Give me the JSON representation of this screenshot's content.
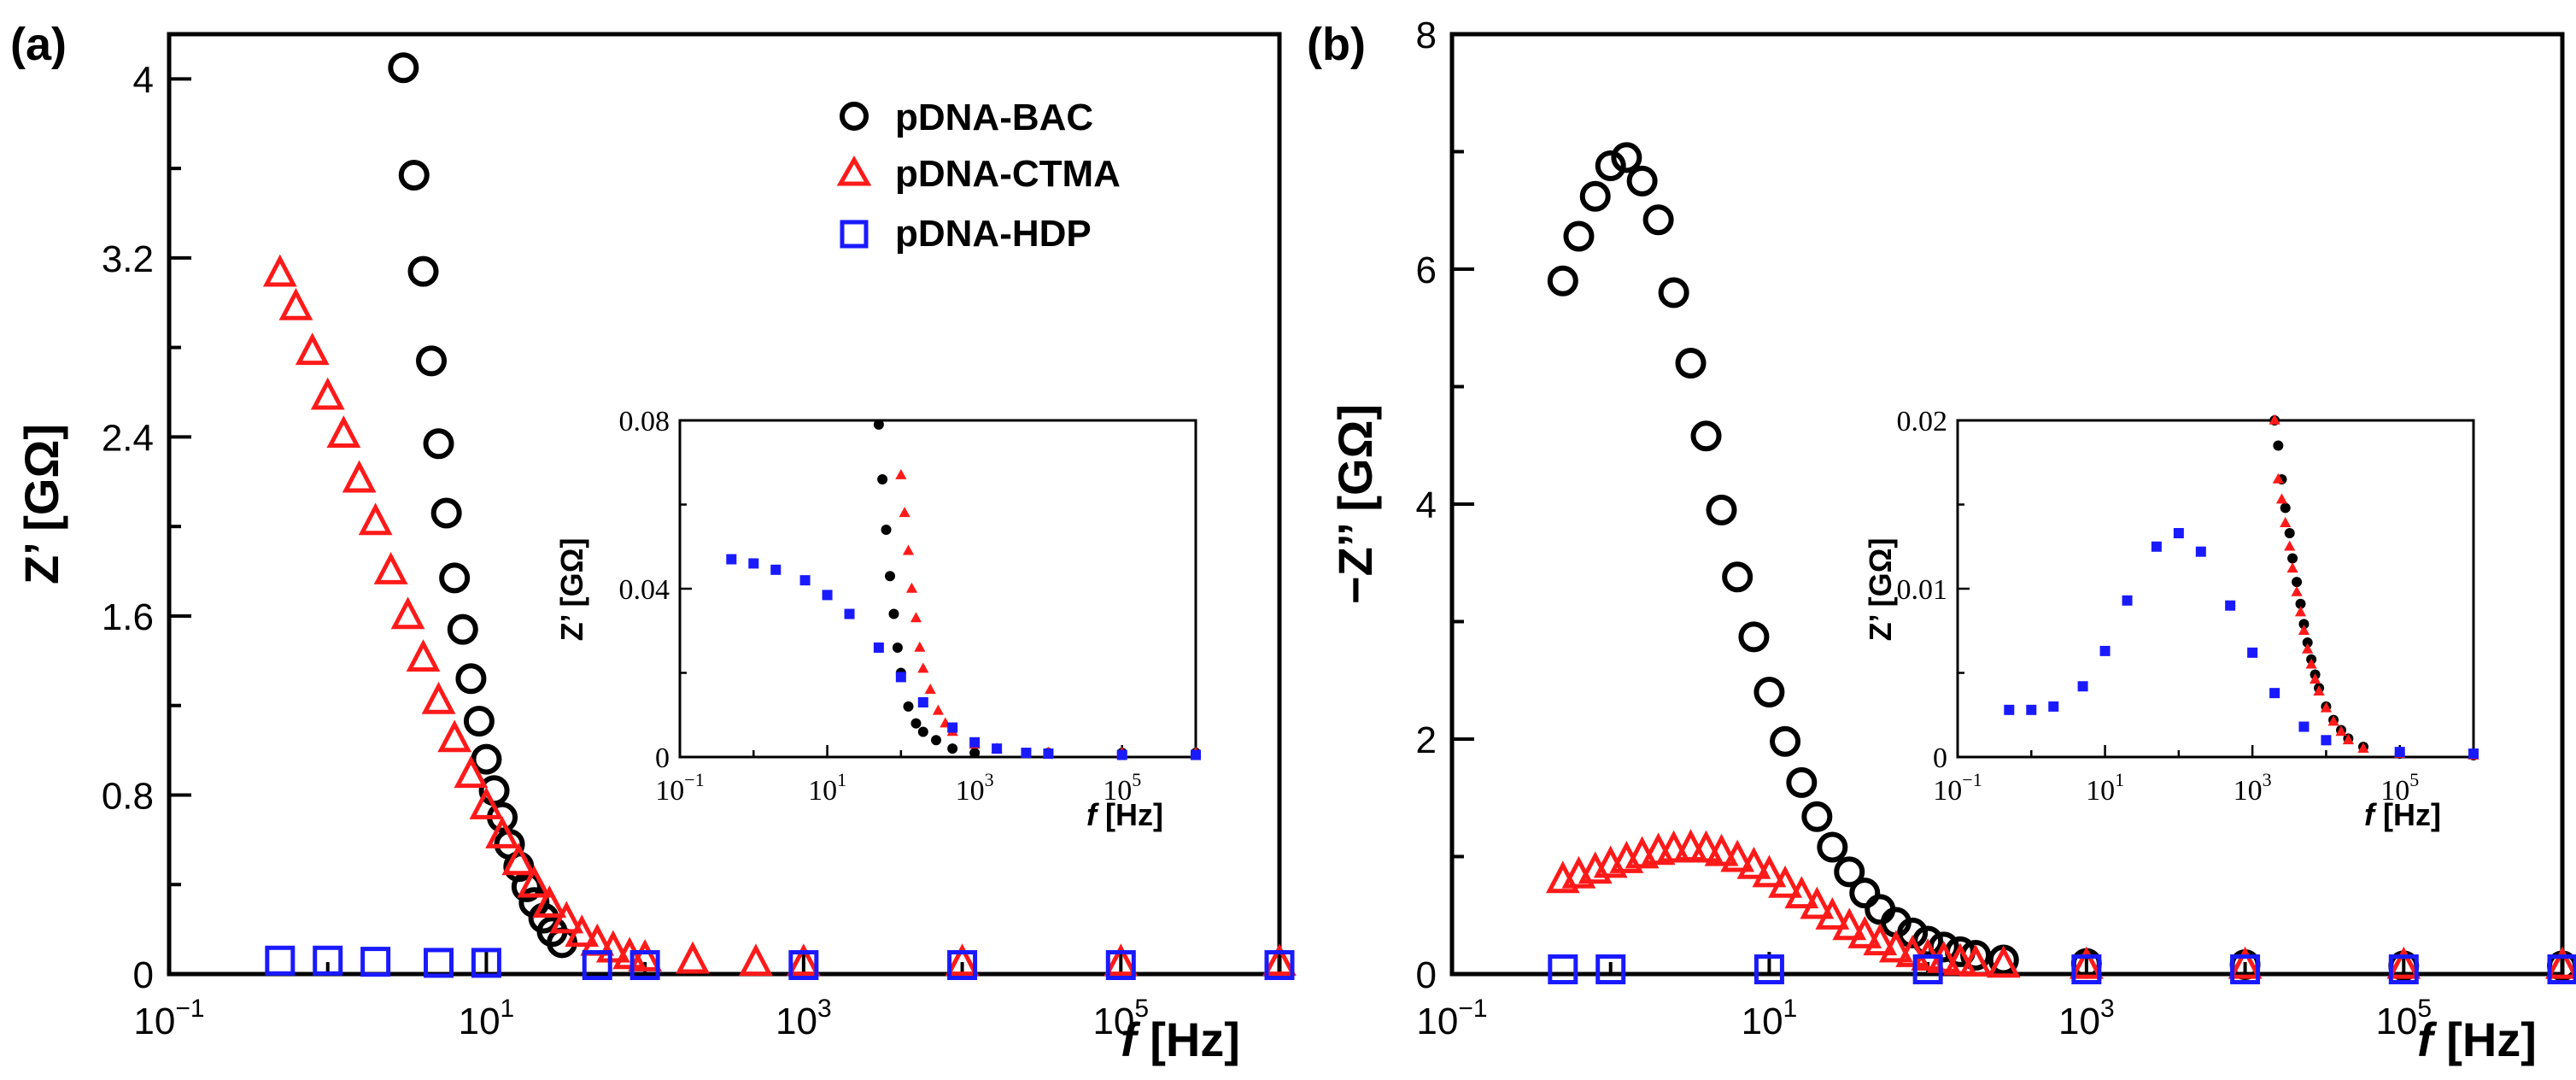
{
  "colors": {
    "bac": "#000000",
    "ctma": "#ff1a1a",
    "hdp": "#1a1aff"
  },
  "legend": {
    "items": [
      {
        "label": "pDNA-BAC",
        "marker": "circle",
        "color": "#000000"
      },
      {
        "label": "pDNA-CTMA",
        "marker": "triangle",
        "color": "#ff1a1a"
      },
      {
        "label": "pDNA-HDP",
        "marker": "square",
        "color": "#1a1aff"
      }
    ]
  },
  "chart_data": [
    {
      "panel": "(a)",
      "type": "scatter",
      "xscale": "log",
      "xlim": [
        0.1,
        1000000
      ],
      "ylim": [
        0,
        4.2
      ],
      "xlabel_var": "f",
      "xlabel_unit": " [Hz]",
      "ylabel": "Z’ [GΩ]",
      "xticks": [
        0.1,
        10,
        1000,
        100000
      ],
      "xtick_labels": [
        [
          "10",
          "−1"
        ],
        [
          "10",
          "1"
        ],
        [
          "10",
          "3"
        ],
        [
          "10",
          "5"
        ]
      ],
      "yticks": [
        0,
        0.8,
        1.6,
        2.4,
        3.2,
        4
      ],
      "ytick_labels": [
        "0",
        "0.8",
        "1.6",
        "2.4",
        "3.2",
        "4"
      ],
      "series": [
        {
          "name": "pDNA-BAC",
          "x": [
            3,
            3.5,
            4,
            4.5,
            5,
            5.6,
            6.3,
            7.1,
            8,
            9,
            10,
            11.2,
            12.6,
            14,
            16,
            18,
            20,
            23,
            26,
            30
          ],
          "y": [
            4.05,
            3.57,
            3.14,
            2.74,
            2.37,
            2.06,
            1.77,
            1.54,
            1.32,
            1.13,
            0.96,
            0.82,
            0.7,
            0.58,
            0.48,
            0.39,
            0.32,
            0.25,
            0.19,
            0.14
          ]
        },
        {
          "name": "pDNA-CTMA",
          "x": [
            0.5,
            0.63,
            0.8,
            1,
            1.26,
            1.58,
            2,
            2.5,
            3.2,
            4,
            5,
            6.3,
            8,
            10,
            12.6,
            16,
            20,
            25,
            32,
            40,
            50,
            63,
            80,
            100,
            200,
            500,
            1000,
            10000,
            100000,
            1000000
          ],
          "y": [
            3.13,
            2.98,
            2.78,
            2.58,
            2.41,
            2.21,
            2.02,
            1.8,
            1.6,
            1.41,
            1.22,
            1.05,
            0.89,
            0.75,
            0.62,
            0.5,
            0.4,
            0.31,
            0.24,
            0.18,
            0.14,
            0.11,
            0.08,
            0.07,
            0.06,
            0.05,
            0.05,
            0.05,
            0.05,
            0.05
          ]
        },
        {
          "name": "pDNA-HDP",
          "x": [
            0.5,
            1,
            2,
            5,
            10,
            50,
            100,
            1000,
            10000,
            100000,
            1000000
          ],
          "y": [
            0.06,
            0.06,
            0.055,
            0.05,
            0.05,
            0.04,
            0.04,
            0.04,
            0.04,
            0.04,
            0.04
          ]
        }
      ],
      "inset": {
        "xscale": "log",
        "xlim": [
          0.1,
          1000000
        ],
        "ylim": [
          0,
          0.08
        ],
        "xlabel_var": "f",
        "xlabel_unit": " [Hz]",
        "ylabel": "Z’ [GΩ]",
        "xticks": [
          0.1,
          10,
          1000,
          100000
        ],
        "xtick_labels": [
          [
            "10",
            "−1"
          ],
          [
            "10",
            "1"
          ],
          [
            "10",
            "3"
          ],
          [
            "10",
            "5"
          ]
        ],
        "yticks": [
          0,
          0.04,
          0.08
        ],
        "ytick_labels": [
          "0",
          "0.04",
          "0.08"
        ],
        "series": [
          {
            "name": "pDNA-BAC",
            "x": [
              50,
              56,
              63,
              71,
              80,
              90,
              100,
              126,
              160,
              200,
              300,
              500,
              1000,
              10000,
              100000,
              1000000
            ],
            "y": [
              0.079,
              0.066,
              0.054,
              0.043,
              0.034,
              0.026,
              0.02,
              0.012,
              0.008,
              0.006,
              0.004,
              0.002,
              0.001,
              0.001,
              0.001,
              0.001
            ]
          },
          {
            "name": "pDNA-CTMA",
            "x": [
              100,
              112,
              126,
              140,
              160,
              180,
              200,
              250,
              320,
              400,
              500,
              1000,
              2000,
              10000,
              100000,
              1000000
            ],
            "y": [
              0.067,
              0.058,
              0.049,
              0.04,
              0.033,
              0.026,
              0.021,
              0.016,
              0.011,
              0.008,
              0.006,
              0.003,
              0.002,
              0.001,
              0.001,
              0.001
            ]
          },
          {
            "name": "pDNA-HDP",
            "x": [
              0.5,
              1,
              2,
              5,
              10,
              20,
              50,
              100,
              200,
              500,
              1000,
              2000,
              5000,
              10000,
              100000,
              1000000
            ],
            "y": [
              0.047,
              0.046,
              0.0445,
              0.042,
              0.0385,
              0.034,
              0.026,
              0.019,
              0.013,
              0.007,
              0.0035,
              0.002,
              0.001,
              0.0008,
              0.0005,
              0.0005
            ]
          }
        ]
      }
    },
    {
      "panel": "(b)",
      "type": "scatter",
      "xscale": "log",
      "xlim": [
        0.1,
        1000000
      ],
      "ylim": [
        0,
        8
      ],
      "xlabel_var": "f",
      "xlabel_unit": " [Hz]",
      "ylabel": "−Z’’ [GΩ]",
      "xticks": [
        0.1,
        10,
        1000,
        100000
      ],
      "xtick_labels": [
        [
          "10",
          "−1"
        ],
        [
          "10",
          "1"
        ],
        [
          "10",
          "3"
        ],
        [
          "10",
          "5"
        ]
      ],
      "yticks": [
        0,
        2,
        4,
        6,
        8
      ],
      "ytick_labels": [
        "0",
        "2",
        "4",
        "6",
        "8"
      ],
      "series": [
        {
          "name": "pDNA-BAC",
          "x": [
            0.5,
            0.63,
            0.8,
            1,
            1.26,
            1.58,
            2,
            2.5,
            3.2,
            4,
            5,
            6.3,
            8,
            10,
            12.6,
            16,
            20,
            25,
            32,
            40,
            50,
            63,
            80,
            100,
            126,
            160,
            200,
            300,
            1000,
            10000,
            100000,
            1000000
          ],
          "y": [
            5.9,
            6.28,
            6.62,
            6.88,
            6.95,
            6.75,
            6.42,
            5.8,
            5.2,
            4.58,
            3.95,
            3.38,
            2.87,
            2.4,
            1.98,
            1.63,
            1.34,
            1.08,
            0.87,
            0.69,
            0.55,
            0.44,
            0.35,
            0.28,
            0.23,
            0.19,
            0.16,
            0.12,
            0.09,
            0.08,
            0.07,
            0.07
          ]
        },
        {
          "name": "pDNA-CTMA",
          "x": [
            0.5,
            0.63,
            0.8,
            1,
            1.26,
            1.58,
            2,
            2.5,
            3.2,
            4,
            5,
            6.3,
            8,
            10,
            12.6,
            16,
            20,
            25,
            32,
            40,
            50,
            63,
            80,
            100,
            126,
            160,
            200,
            300,
            1000,
            10000,
            100000,
            1000000
          ],
          "y": [
            0.8,
            0.84,
            0.88,
            0.93,
            0.97,
            1.01,
            1.04,
            1.06,
            1.07,
            1.06,
            1.03,
            0.98,
            0.92,
            0.85,
            0.76,
            0.67,
            0.58,
            0.49,
            0.4,
            0.33,
            0.27,
            0.21,
            0.17,
            0.14,
            0.12,
            0.1,
            0.09,
            0.08,
            0.07,
            0.07,
            0.07,
            0.07
          ]
        },
        {
          "name": "pDNA-HDP",
          "x": [
            0.5,
            1,
            10,
            100,
            1000,
            10000,
            100000,
            1000000
          ],
          "y": [
            0.04,
            0.04,
            0.04,
            0.04,
            0.04,
            0.04,
            0.04,
            0.04
          ]
        }
      ],
      "inset": {
        "xscale": "log",
        "xlim": [
          0.1,
          1000000
        ],
        "ylim": [
          0,
          0.02
        ],
        "xlabel_var": "f",
        "xlabel_unit": " [Hz]",
        "ylabel": "Z’ [GΩ]",
        "xticks": [
          0.1,
          10,
          1000,
          100000
        ],
        "xtick_labels": [
          [
            "10",
            "−1"
          ],
          [
            "10",
            "1"
          ],
          [
            "10",
            "3"
          ],
          [
            "10",
            "5"
          ]
        ],
        "yticks": [
          0,
          0.01,
          0.02
        ],
        "ytick_labels": [
          "0",
          "0.01",
          "0.02"
        ],
        "series": [
          {
            "name": "pDNA-BAC",
            "x": [
              2000,
              2240,
              2500,
              2800,
              3200,
              3500,
              4000,
              4500,
              5000,
              5600,
              6300,
              7100,
              8000,
              10000,
              12600,
              16000,
              20000,
              32000,
              100000,
              1000000
            ],
            "y": [
              0.02,
              0.0185,
              0.0165,
              0.0148,
              0.0133,
              0.0118,
              0.0104,
              0.0091,
              0.0079,
              0.0068,
              0.0058,
              0.0049,
              0.0041,
              0.003,
              0.0022,
              0.0016,
              0.0011,
              0.0006,
              0.0002,
              0.0001
            ]
          },
          {
            "name": "pDNA-CTMA",
            "x": [
              2000,
              2240,
              2500,
              2800,
              3200,
              3500,
              4000,
              4500,
              5000,
              5600,
              6300,
              7100,
              8000,
              10000,
              12600,
              16000,
              20000,
              32000,
              100000,
              1000000
            ],
            "y": [
              0.02,
              0.0165,
              0.0153,
              0.0139,
              0.0125,
              0.0112,
              0.0098,
              0.0086,
              0.0075,
              0.0064,
              0.0055,
              0.0046,
              0.0039,
              0.0029,
              0.0021,
              0.0015,
              0.001,
              0.0005,
              0.0002,
              0.0001
            ]
          },
          {
            "name": "pDNA-HDP",
            "x": [
              0.5,
              1,
              2,
              5,
              10,
              20,
              50,
              100,
              200,
              500,
              1000,
              2000,
              5000,
              10000,
              100000,
              1000000
            ],
            "y": [
              0.0028,
              0.0028,
              0.003,
              0.0042,
              0.0063,
              0.0093,
              0.0125,
              0.0133,
              0.0122,
              0.009,
              0.0062,
              0.0038,
              0.0018,
              0.001,
              0.0003,
              0.0002
            ]
          }
        ]
      }
    }
  ]
}
